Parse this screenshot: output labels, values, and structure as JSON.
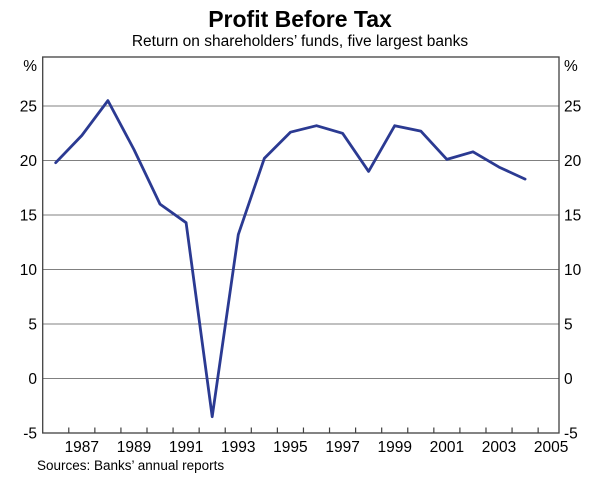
{
  "chart_data": {
    "type": "line",
    "title": "Profit Before Tax",
    "subtitle": "Return on shareholders’ funds, five largest banks",
    "source": "Sources: Banks’ annual reports",
    "unit": "%",
    "series": [
      {
        "name": "Return on shareholders’ funds",
        "x": [
          1986,
          1987,
          1988,
          1989,
          1990,
          1991,
          1992,
          1993,
          1994,
          1995,
          1996,
          1997,
          1998,
          1999,
          2000,
          2001,
          2002,
          2003,
          2004
        ],
        "values": [
          19.8,
          22.3,
          25.5,
          21.0,
          16.0,
          14.3,
          -3.5,
          13.2,
          20.2,
          22.6,
          23.2,
          22.5,
          19.0,
          23.2,
          22.7,
          20.1,
          20.8,
          19.4,
          18.3
        ]
      }
    ],
    "x_tick_labels": [
      "1987",
      "1989",
      "1991",
      "1993",
      "1995",
      "1997",
      "1999",
      "2001",
      "2003",
      "2005"
    ],
    "x_tick_label_years": [
      1987,
      1989,
      1991,
      1993,
      1995,
      1997,
      1999,
      2001,
      2003,
      2005
    ],
    "x_boundary_ticks_start": 1986.5,
    "x_boundary_ticks_end": 2004.5,
    "y_ticks": [
      -5,
      0,
      5,
      10,
      15,
      20,
      25
    ],
    "grid_values": [
      0,
      5,
      10,
      15,
      20,
      25
    ],
    "xlim": [
      1985.5,
      2005.3
    ],
    "ylim": [
      -5,
      29.5
    ],
    "legend_position": "none",
    "grid": "horizontal",
    "colors": {
      "line": "#2b3a92",
      "grid": "#808080",
      "frame": "#404040",
      "text": "#000000",
      "background": "#ffffff"
    }
  }
}
